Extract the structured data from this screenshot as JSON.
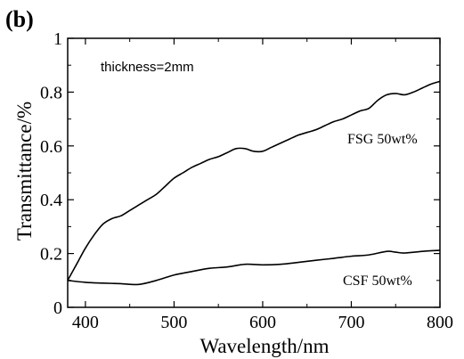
{
  "chart_data": {
    "type": "line",
    "panel_label": "(b)",
    "annotation": "thickness=2mm",
    "xlabel": "Wavelength/nm",
    "ylabel": "Transmittance/%",
    "xlim": [
      380,
      800
    ],
    "ylim": [
      0,
      1
    ],
    "xticks": [
      400,
      500,
      600,
      700,
      800
    ],
    "yticks": [
      0,
      0.2,
      0.4,
      0.6,
      0.8,
      1
    ],
    "ytick_labels": [
      "0",
      "0.2",
      "0.4",
      "0.6",
      "0.8",
      "1"
    ],
    "grid": false,
    "series": [
      {
        "name": "FSG 50wt%",
        "x": [
          380,
          390,
          400,
          410,
          420,
          430,
          440,
          450,
          460,
          470,
          480,
          490,
          500,
          510,
          520,
          530,
          540,
          550,
          560,
          570,
          580,
          590,
          600,
          610,
          620,
          630,
          640,
          650,
          660,
          670,
          680,
          690,
          700,
          710,
          720,
          730,
          740,
          750,
          760,
          770,
          780,
          790,
          800
        ],
        "y": [
          0.1,
          0.16,
          0.22,
          0.27,
          0.31,
          0.33,
          0.34,
          0.36,
          0.38,
          0.4,
          0.42,
          0.45,
          0.48,
          0.5,
          0.52,
          0.535,
          0.55,
          0.56,
          0.575,
          0.59,
          0.59,
          0.58,
          0.58,
          0.595,
          0.61,
          0.625,
          0.64,
          0.65,
          0.66,
          0.675,
          0.69,
          0.7,
          0.715,
          0.73,
          0.74,
          0.77,
          0.79,
          0.795,
          0.79,
          0.8,
          0.815,
          0.83,
          0.84
        ]
      },
      {
        "name": "CSF 50wt%",
        "x": [
          380,
          400,
          420,
          440,
          460,
          480,
          500,
          520,
          540,
          560,
          580,
          600,
          620,
          640,
          660,
          680,
          700,
          720,
          740,
          750,
          760,
          780,
          800
        ],
        "y": [
          0.1,
          0.093,
          0.09,
          0.088,
          0.085,
          0.1,
          0.12,
          0.133,
          0.145,
          0.15,
          0.16,
          0.158,
          0.16,
          0.167,
          0.175,
          0.182,
          0.19,
          0.195,
          0.208,
          0.205,
          0.202,
          0.208,
          0.212
        ]
      }
    ]
  }
}
